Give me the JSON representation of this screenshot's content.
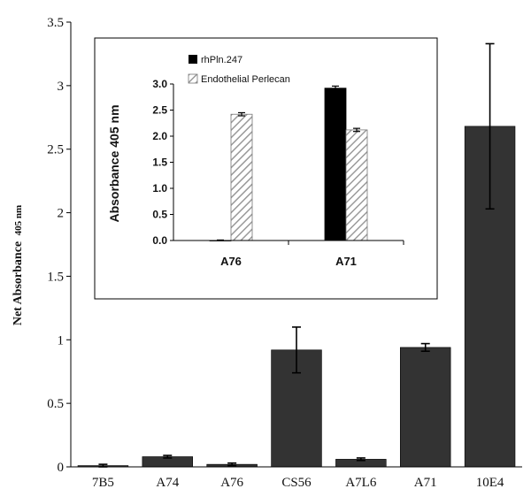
{
  "chart_data": [
    {
      "type": "bar",
      "title": "",
      "xlabel": "",
      "ylabel": "Net Absorbance",
      "ylabel_sub": "405 nm",
      "ylim": [
        0,
        3.5
      ],
      "yticks": [
        "0",
        "0.5",
        "1",
        "1.5",
        "2",
        "2.5",
        "3",
        "3.5"
      ],
      "categories": [
        "7B5",
        "A74",
        "A76",
        "CS56",
        "A7L6",
        "A71",
        "10E4"
      ],
      "values": [
        0.01,
        0.08,
        0.02,
        0.92,
        0.06,
        0.94,
        2.68
      ],
      "errors": [
        0.01,
        0.01,
        0.01,
        0.18,
        0.01,
        0.03,
        0.65
      ],
      "bar_color": "#333333"
    },
    {
      "type": "bar",
      "title": "",
      "xlabel": "",
      "ylabel": "Absorbance  405 nm",
      "ylim": [
        0,
        3.0
      ],
      "yticks": [
        "0.0",
        "0.5",
        "1.0",
        "1.5",
        "2.0",
        "2.5",
        "3.0"
      ],
      "categories": [
        "A76",
        "A71"
      ],
      "series": [
        {
          "name": "rhPln.247",
          "values": [
            0.0,
            2.92
          ],
          "errors": [
            0.01,
            0.04
          ],
          "color": "#000000",
          "pattern": "solid"
        },
        {
          "name": "Endothelial Perlecan",
          "values": [
            2.42,
            2.12
          ],
          "errors": [
            0.03,
            0.03
          ],
          "color": "#bbbbbb",
          "pattern": "hatched"
        }
      ],
      "legend_position": "top-left"
    }
  ]
}
